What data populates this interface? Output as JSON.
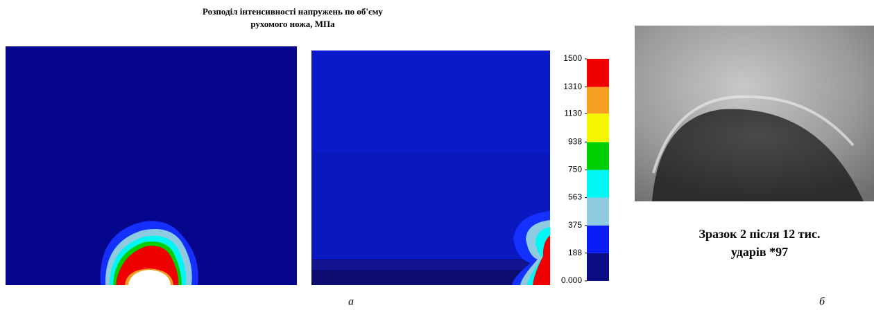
{
  "title": [
    "Розподіл інтенсивності напружень по об'єму",
    "рухомого ножа, МПа"
  ],
  "colorbar": {
    "ticks": [
      {
        "value": 0,
        "label": "0.000"
      },
      188,
      375,
      563,
      750,
      938,
      1130,
      1310,
      1500
    ],
    "colors": [
      "#0c0c82",
      "#0a1cf5",
      "#8ecbe0",
      "#00f5f5",
      "#00d000",
      "#f5f500",
      "#f5a020",
      "#f00000"
    ]
  },
  "caption": [
    "Зразок 2 після 12 тис.",
    "ударів *97"
  ],
  "panel_labels": [
    "а",
    "б"
  ]
}
